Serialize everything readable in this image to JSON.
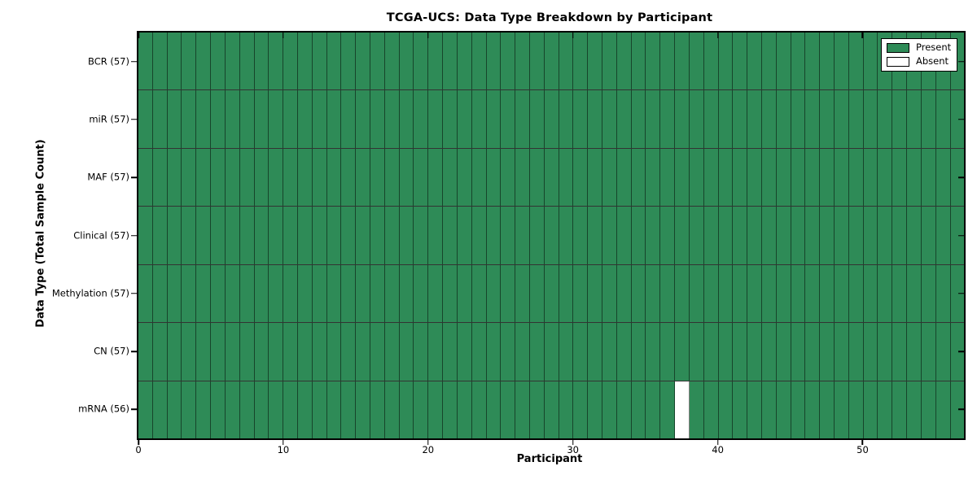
{
  "chart_data": {
    "type": "heatmap",
    "title": "TCGA-UCS: Data Type Breakdown by Participant",
    "xlabel": "Participant",
    "ylabel": "Data Type (Total Sample Count)",
    "n_participants": 57,
    "x_ticks": [
      0,
      10,
      20,
      30,
      40,
      50
    ],
    "xlim": [
      0,
      57
    ],
    "grid": "cell-edges",
    "legend_position": "upper-right",
    "rows": [
      {
        "label": "BCR (57)",
        "total": 57,
        "absent_participants": []
      },
      {
        "label": "miR (57)",
        "total": 57,
        "absent_participants": []
      },
      {
        "label": "MAF (57)",
        "total": 57,
        "absent_participants": []
      },
      {
        "label": "Clinical (57)",
        "total": 57,
        "absent_participants": []
      },
      {
        "label": "Methylation (57)",
        "total": 57,
        "absent_participants": []
      },
      {
        "label": "CN (57)",
        "total": 57,
        "absent_participants": []
      },
      {
        "label": "mRNA (56)",
        "total": 56,
        "absent_participants": [
          37
        ]
      }
    ],
    "legend": [
      {
        "label": "Present",
        "color": "#2E8B57"
      },
      {
        "label": "Absent",
        "color": "#FFFFFF"
      }
    ]
  },
  "colors": {
    "present": "#2E8B57",
    "absent": "#FFFFFF",
    "spine": "#000000"
  }
}
